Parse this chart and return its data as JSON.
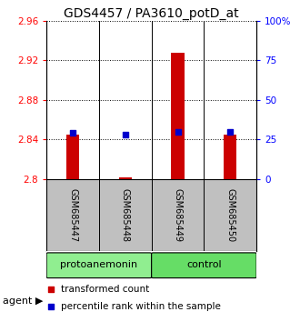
{
  "title": "GDS4457 / PA3610_potD_at",
  "samples": [
    "GSM685447",
    "GSM685448",
    "GSM685449",
    "GSM685450"
  ],
  "red_values": [
    2.845,
    2.802,
    2.928,
    2.845
  ],
  "blue_values": [
    2.847,
    2.845,
    2.848,
    2.848
  ],
  "ymin": 2.8,
  "ymax": 2.96,
  "yticks_left": [
    2.8,
    2.84,
    2.88,
    2.92,
    2.96
  ],
  "ytick_labels_left": [
    "2.8",
    "2.84",
    "2.88",
    "2.92",
    "2.96"
  ],
  "ytick_labels_right": [
    "0",
    "25",
    "50",
    "75",
    "100%"
  ],
  "groups": [
    {
      "label": "protoanemonin",
      "start": 0,
      "end": 2,
      "color": "#90EE90"
    },
    {
      "label": "control",
      "start": 2,
      "end": 4,
      "color": "#66DD66"
    }
  ],
  "group_label": "agent",
  "bar_color": "#CC0000",
  "dot_color": "#0000CC",
  "bar_width": 0.25,
  "dot_size": 25,
  "legend_items": [
    {
      "color": "#CC0000",
      "label": "transformed count"
    },
    {
      "color": "#0000CC",
      "label": "percentile rank within the sample"
    }
  ],
  "background_color": "#FFFFFF",
  "plot_bg_color": "#FFFFFF",
  "sample_box_color": "#C0C0C0",
  "title_fontsize": 10,
  "tick_fontsize": 7.5,
  "legend_fontsize": 7.5,
  "sample_label_fontsize": 7,
  "group_label_fontsize": 8
}
